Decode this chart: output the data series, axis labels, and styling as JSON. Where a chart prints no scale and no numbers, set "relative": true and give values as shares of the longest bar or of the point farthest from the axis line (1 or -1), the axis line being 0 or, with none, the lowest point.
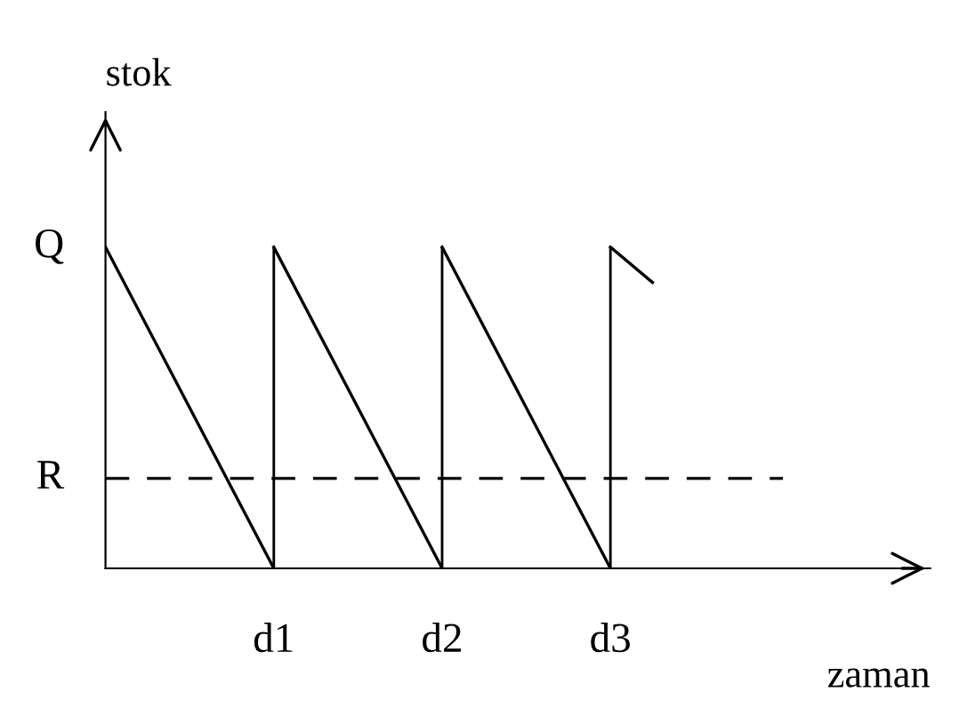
{
  "chart_data": {
    "type": "line",
    "xlabel": "zaman",
    "ylabel": "stok",
    "relative": true,
    "categories": [
      null,
      null,
      null,
      null,
      "d1",
      null,
      null,
      null,
      "d2",
      null,
      null,
      null,
      "d3",
      null
    ],
    "series": [
      {
        "color": "#000000",
        "values": [
          1,
          null,
          null,
          null,
          0,
          null,
          null,
          null,
          null,
          null,
          null,
          null,
          null,
          null
        ]
      },
      {
        "color": "#000000",
        "values": [
          null,
          null,
          null,
          null,
          1,
          null,
          null,
          null,
          0,
          null,
          null,
          null,
          null,
          null
        ]
      },
      {
        "color": "#000000",
        "values": [
          null,
          null,
          null,
          null,
          null,
          null,
          null,
          null,
          1,
          null,
          null,
          null,
          0,
          null
        ]
      },
      {
        "color": "#000000",
        "values": [
          null,
          null,
          null,
          null,
          null,
          null,
          null,
          null,
          null,
          null,
          null,
          null,
          1,
          0.89
        ]
      },
      {
        "type": "bar",
        "color": "#000000",
        "values": [
          null,
          null,
          null,
          null,
          1,
          null,
          null,
          null,
          1,
          null,
          null,
          null,
          1,
          null
        ]
      }
    ],
    "annotations": [
      "Q"
    ],
    "ref_lines": [
      {
        "axis": "y",
        "value": 0.28,
        "label": "R",
        "color": "#000000",
        "line_style": "dashed"
      }
    ],
    "legend": false,
    "marker": "none",
    "line_style": "solid"
  }
}
